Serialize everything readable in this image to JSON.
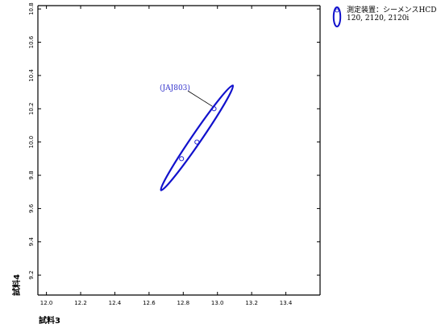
{
  "chart_data": {
    "type": "scatter",
    "xlabel": "試料3",
    "ylabel": "試料4",
    "xlim": [
      11.95,
      13.6
    ],
    "ylim": [
      9.08,
      10.82
    ],
    "x_ticks": [
      "12.0",
      "12.2",
      "12.4",
      "12.6",
      "12.8",
      "13.0",
      "13.2",
      "13.4"
    ],
    "y_ticks": [
      "9.2",
      "9.4",
      "9.6",
      "9.8",
      "10.0",
      "10.2",
      "10.4",
      "10.6",
      "10.8"
    ],
    "grid": false,
    "legend_position": "top-right",
    "legend_lines": [
      "測定装置：シーメンスHCD",
      "120, 2120, 2120i"
    ],
    "series": [
      {
        "name": "測定装置：シーメンスHCD 120, 2120, 2120i",
        "points": [
          {
            "x": 12.79,
            "y": 9.9
          },
          {
            "x": 12.88,
            "y": 10.0
          },
          {
            "x": 12.98,
            "y": 10.2
          }
        ],
        "ellipse": {
          "center": [
            12.88,
            10.025
          ],
          "tips": [
            [
              12.67,
              9.71
            ],
            [
              13.09,
              10.34
            ]
          ],
          "minor_halfwidth": 0.028
        }
      }
    ],
    "annotations": [
      {
        "text": "(JAJ803)",
        "point_x": 12.98,
        "point_y": 10.2
      }
    ]
  },
  "colors": {
    "series": "#1111cc",
    "annotation": "#3333cc",
    "axis": "#000000"
  }
}
